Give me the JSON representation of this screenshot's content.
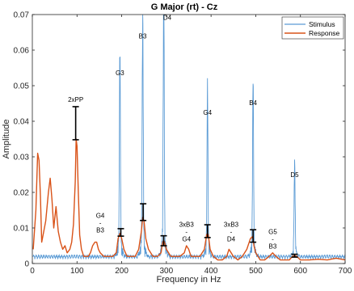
{
  "chart_data": {
    "type": "line",
    "title": "G Major (rt) - Cz",
    "xlabel": "Frequency in Hz",
    "ylabel": "Amplitude",
    "xlim": [
      0,
      700
    ],
    "ylim": [
      0,
      0.07
    ],
    "grid": false,
    "legend_placement": "top-right",
    "x_ticks": [
      "0",
      "100",
      "200",
      "300",
      "400",
      "500",
      "600",
      "700"
    ],
    "y_ticks": [
      "0",
      "0.01",
      "0.02",
      "0.03",
      "0.04",
      "0.05",
      "0.06",
      "0.07"
    ],
    "series": [
      {
        "name": "Stimulus",
        "color": "#5b9bd5",
        "peaks": [
          {
            "x": 196,
            "y": 0.052
          },
          {
            "x": 247,
            "y": 0.062
          },
          {
            "x": 294,
            "y": 0.07
          },
          {
            "x": 392,
            "y": 0.041
          },
          {
            "x": 494,
            "y": 0.0435
          },
          {
            "x": 587,
            "y": 0.0235
          }
        ]
      },
      {
        "name": "Response",
        "color": "#d95319",
        "x": [
          2,
          8,
          12,
          15,
          18,
          21,
          24,
          30,
          36,
          40,
          44,
          48,
          53,
          58,
          63,
          68,
          73,
          78,
          84,
          88,
          92,
          96,
          98,
          100,
          103,
          106,
          110,
          115,
          120,
          125,
          130,
          135,
          140,
          144,
          148,
          152,
          160,
          170,
          180,
          188,
          192,
          196,
          200,
          205,
          212,
          220,
          230,
          238,
          244,
          247,
          250,
          254,
          260,
          270,
          280,
          288,
          292,
          294,
          296,
          300,
          310,
          320,
          330,
          340,
          345,
          350,
          355,
          365,
          375,
          385,
          390,
          392,
          394,
          398,
          405,
          415,
          425,
          435,
          440,
          445,
          450,
          460,
          470,
          480,
          488,
          492,
          494,
          496,
          500,
          510,
          520,
          530,
          538,
          545,
          555,
          565,
          575,
          582,
          587,
          592,
          600,
          620,
          640,
          660,
          680,
          700
        ],
        "y": [
          0.004,
          0.015,
          0.031,
          0.029,
          0.019,
          0.006,
          0.008,
          0.012,
          0.02,
          0.024,
          0.018,
          0.01,
          0.016,
          0.009,
          0.006,
          0.004,
          0.005,
          0.003,
          0.004,
          0.006,
          0.011,
          0.023,
          0.035,
          0.033,
          0.02,
          0.008,
          0.004,
          0.002,
          0.002,
          0.002,
          0.003,
          0.005,
          0.006,
          0.006,
          0.004,
          0.003,
          0.002,
          0.002,
          0.002,
          0.003,
          0.007,
          0.0085,
          0.007,
          0.004,
          0.002,
          0.002,
          0.002,
          0.004,
          0.009,
          0.013,
          0.012,
          0.007,
          0.004,
          0.002,
          0.002,
          0.003,
          0.006,
          0.0065,
          0.006,
          0.004,
          0.002,
          0.002,
          0.002,
          0.003,
          0.005,
          0.004,
          0.002,
          0.002,
          0.002,
          0.004,
          0.008,
          0.0085,
          0.008,
          0.004,
          0.002,
          0.001,
          0.001,
          0.002,
          0.004,
          0.003,
          0.002,
          0.001,
          0.002,
          0.004,
          0.007,
          0.0075,
          0.007,
          0.005,
          0.003,
          0.001,
          0.001,
          0.002,
          0.003,
          0.002,
          0.001,
          0.001,
          0.001,
          0.002,
          0.0022,
          0.002,
          0.001,
          0.001,
          0.0012,
          0.001,
          0.0015,
          0.001
        ]
      }
    ],
    "error_bars": [
      {
        "x": 97,
        "low": 0.0348,
        "high": 0.0441
      },
      {
        "x": 198,
        "low": 0.0077,
        "high": 0.0098
      },
      {
        "x": 248,
        "low": 0.0121,
        "high": 0.0168
      },
      {
        "x": 294,
        "low": 0.005,
        "high": 0.0078
      },
      {
        "x": 392,
        "low": 0.0073,
        "high": 0.0109
      },
      {
        "x": 494,
        "low": 0.006,
        "high": 0.0095
      },
      {
        "x": 587,
        "low": 0.0018,
        "high": 0.0026
      }
    ],
    "annotations": [
      {
        "lines": [
          "2xPP"
        ],
        "x": 97,
        "y": 0.0455
      },
      {
        "lines": [
          "G3"
        ],
        "x": 196,
        "y": 0.053
      },
      {
        "lines": [
          "B3"
        ],
        "x": 247,
        "y": 0.0633
      },
      {
        "lines": [
          "D4"
        ],
        "x": 302,
        "y": 0.0685
      },
      {
        "lines": [
          "G4"
        ],
        "x": 392,
        "y": 0.0418
      },
      {
        "lines": [
          "B4"
        ],
        "x": 494,
        "y": 0.0445
      },
      {
        "lines": [
          "D5"
        ],
        "x": 587,
        "y": 0.0243
      },
      {
        "lines": [
          "G4",
          "-",
          "B3"
        ],
        "x": 152,
        "y": 0.0128
      },
      {
        "lines": [
          "3xB3",
          "-",
          "G4"
        ],
        "x": 345,
        "y": 0.0103
      },
      {
        "lines": [
          "3xB3",
          "-",
          "D4"
        ],
        "x": 445,
        "y": 0.0103
      },
      {
        "lines": [
          "G5",
          "-",
          "B3"
        ],
        "x": 538,
        "y": 0.0083
      }
    ]
  }
}
